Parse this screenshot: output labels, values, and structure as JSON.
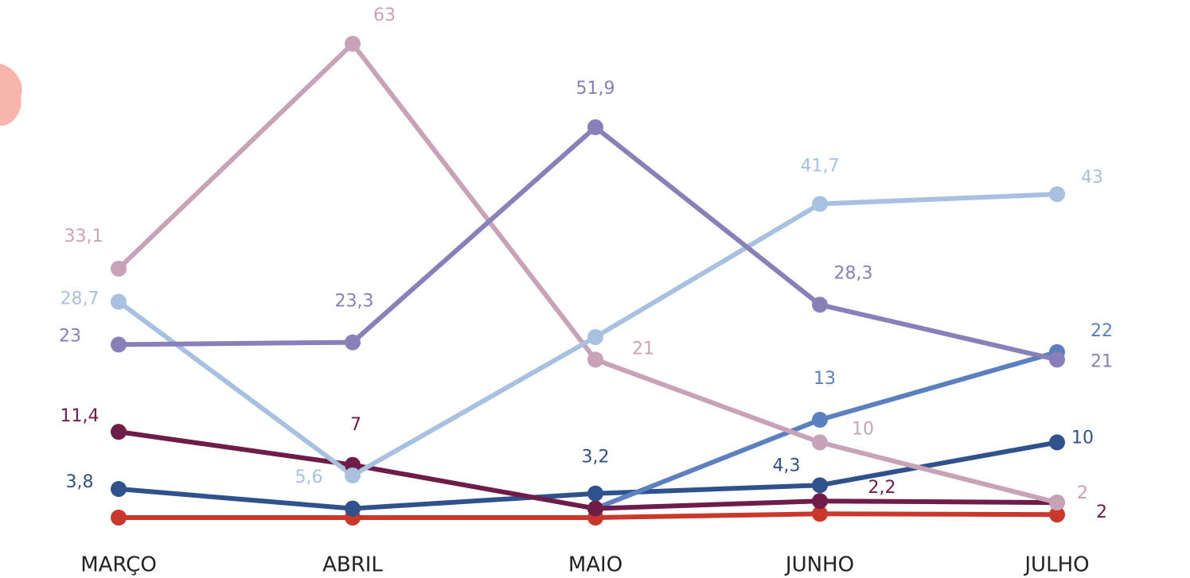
{
  "chart_data": {
    "type": "line",
    "categories": [
      "MARÇO",
      "ABRIL",
      "MAIO",
      "JUNHO",
      "JULHO"
    ],
    "series": [
      {
        "color": "#c9382a",
        "values": [
          0,
          0,
          0,
          0.5,
          0.4
        ],
        "value_labels": [
          null,
          null,
          null,
          null,
          null
        ]
      },
      {
        "color": "#30528c",
        "values": [
          3.8,
          1.2,
          3.2,
          4.3,
          10
        ],
        "value_labels": [
          "3,8",
          null,
          "3,2",
          "4,3",
          "10"
        ]
      },
      {
        "color": "#5a80bd",
        "values": [
          null,
          null,
          1.2,
          13,
          22
        ],
        "value_labels": [
          null,
          null,
          null,
          "13",
          "22"
        ]
      },
      {
        "color": "#6e1c48",
        "values": [
          11.4,
          7,
          1.2,
          2.2,
          2
        ],
        "value_labels": [
          "11,4",
          "7",
          null,
          "2,2",
          "2"
        ]
      },
      {
        "color": "#c8a3b8",
        "values": [
          33.1,
          63,
          21,
          10,
          2
        ],
        "value_labels": [
          "33,1",
          "63",
          "21",
          "10",
          "2"
        ]
      },
      {
        "color": "#a8c1e1",
        "values": [
          28.7,
          5.6,
          24,
          41.7,
          43
        ],
        "value_labels": [
          "28,7",
          "5,6",
          null,
          "41,7",
          "43"
        ]
      },
      {
        "color": "#8880b9",
        "values": [
          23,
          23.3,
          51.9,
          28.3,
          21
        ],
        "value_labels": [
          "23",
          "23,3",
          "51,9",
          "28,3",
          "21"
        ]
      }
    ]
  }
}
